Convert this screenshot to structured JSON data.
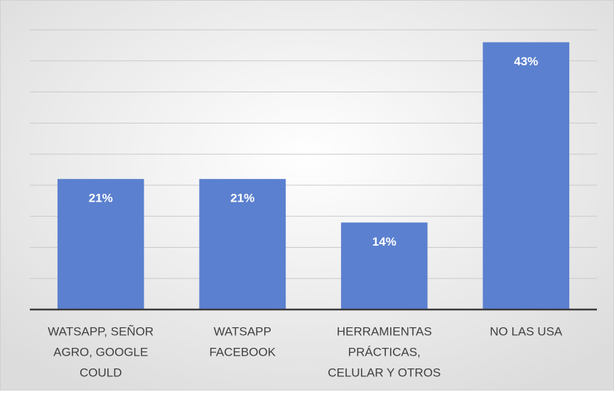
{
  "chart_data": {
    "type": "bar",
    "categories": [
      [
        "WATSAPP, SEÑOR",
        "AGRO, GOOGLE",
        "COULD"
      ],
      [
        "WATSAPP",
        "FACEBOOK"
      ],
      [
        "HERRAMIENTAS",
        "PRÁCTICAS,",
        "CELULAR Y OTROS"
      ],
      [
        "NO LAS USA"
      ]
    ],
    "values": [
      21,
      21,
      14,
      43
    ],
    "value_labels": [
      "21%",
      "21%",
      "14%",
      "43%"
    ],
    "color": "#5b80cf",
    "ylim": [
      0,
      45
    ],
    "yticks": [
      0,
      5,
      10,
      15,
      20,
      25,
      30,
      35,
      40,
      45
    ],
    "grid": true
  }
}
